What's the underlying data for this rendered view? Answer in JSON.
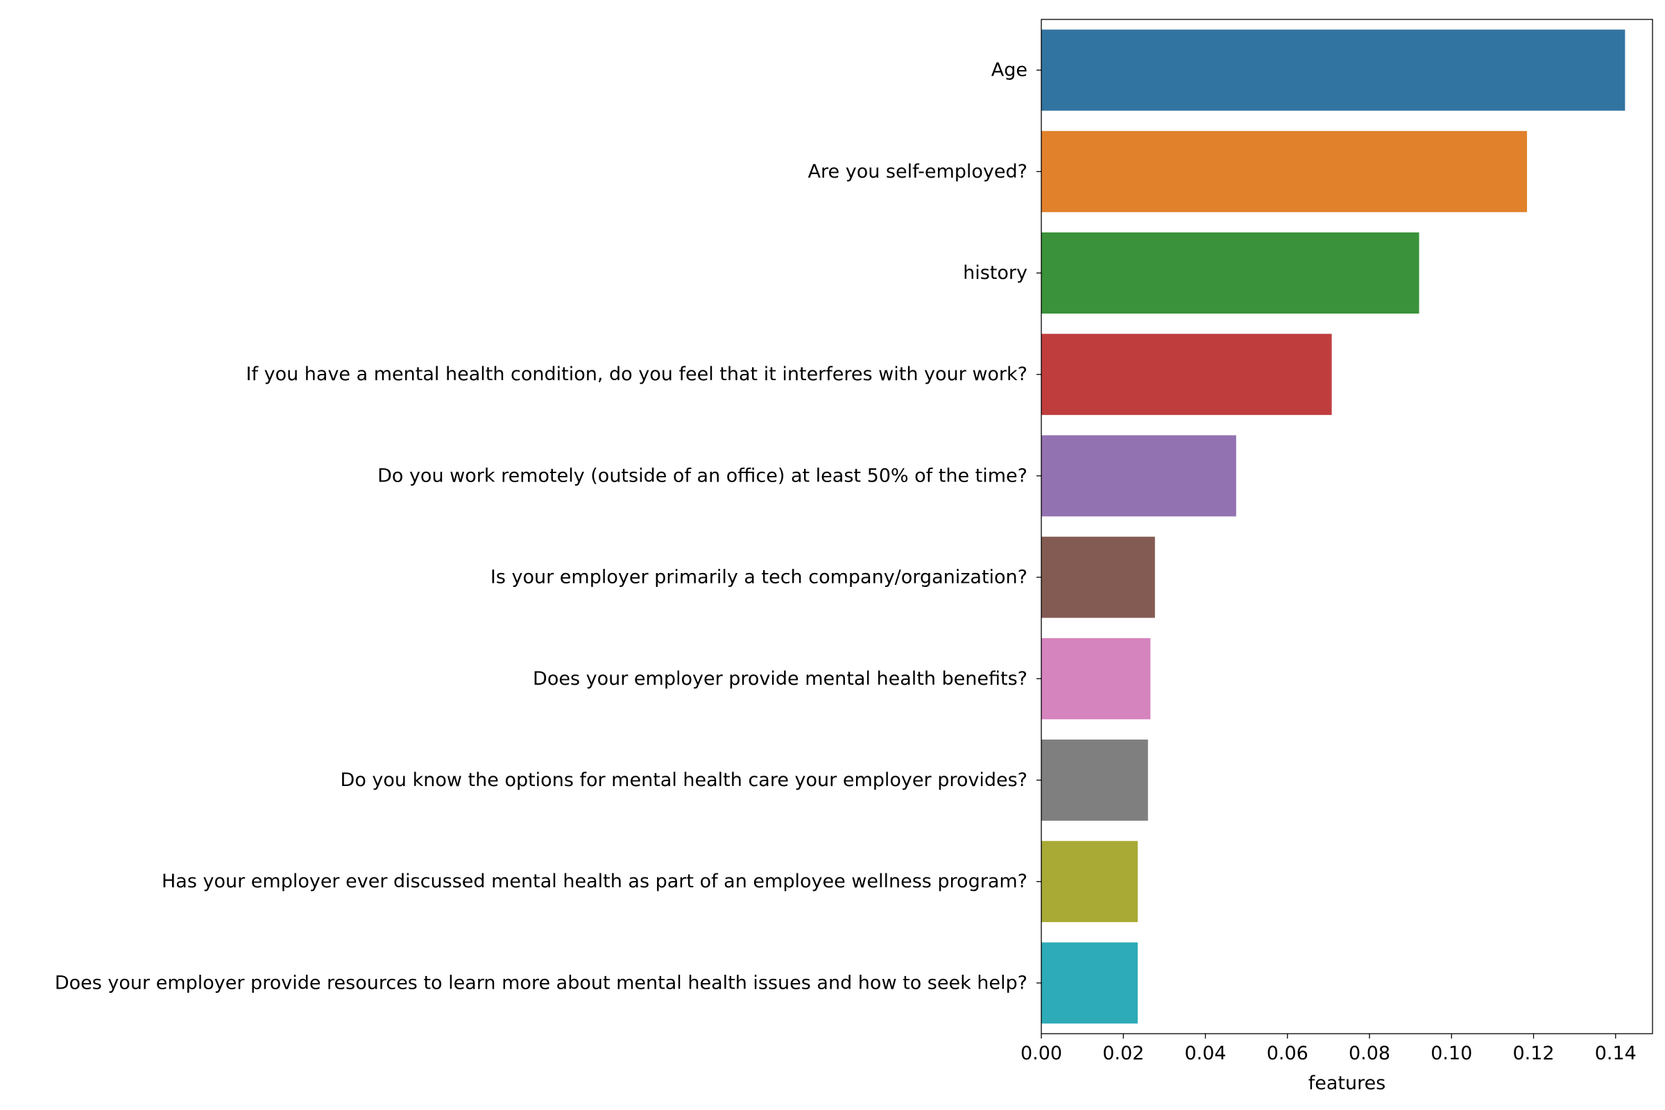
{
  "chart_data": {
    "type": "bar",
    "orientation": "horizontal",
    "title": "",
    "xlabel": "features",
    "ylabel": "",
    "xlim": [
      0,
      0.149
    ],
    "xticks": [
      0.0,
      0.02,
      0.04,
      0.06,
      0.08,
      0.1,
      0.12,
      0.14
    ],
    "xtick_labels": [
      "0.00",
      "0.02",
      "0.04",
      "0.06",
      "0.08",
      "0.10",
      "0.12",
      "0.14"
    ],
    "grid": false,
    "categories": [
      "Age",
      "Are you self-employed?",
      "history",
      "If you have a mental health condition, do you feel that it interferes with your work?",
      "Do you work remotely (outside of an office) at least 50% of the time?",
      "Is your employer primarily a tech company/organization?",
      "Does your employer provide mental health benefits?",
      "Do you know the options for mental health care your employer provides?",
      "Has your employer ever discussed mental health as part of an employee wellness program?",
      "Does your employer provide resources to learn more about mental health issues and how to seek help?"
    ],
    "values": [
      0.1423,
      0.1184,
      0.0921,
      0.0708,
      0.0475,
      0.0277,
      0.0266,
      0.026,
      0.0235,
      0.0235
    ],
    "colors": [
      "#3274a1",
      "#e1812c",
      "#3a923a",
      "#c03d3e",
      "#9372b2",
      "#845b53",
      "#d684bd",
      "#7f7f7f",
      "#a9aa35",
      "#2eabb8"
    ]
  }
}
